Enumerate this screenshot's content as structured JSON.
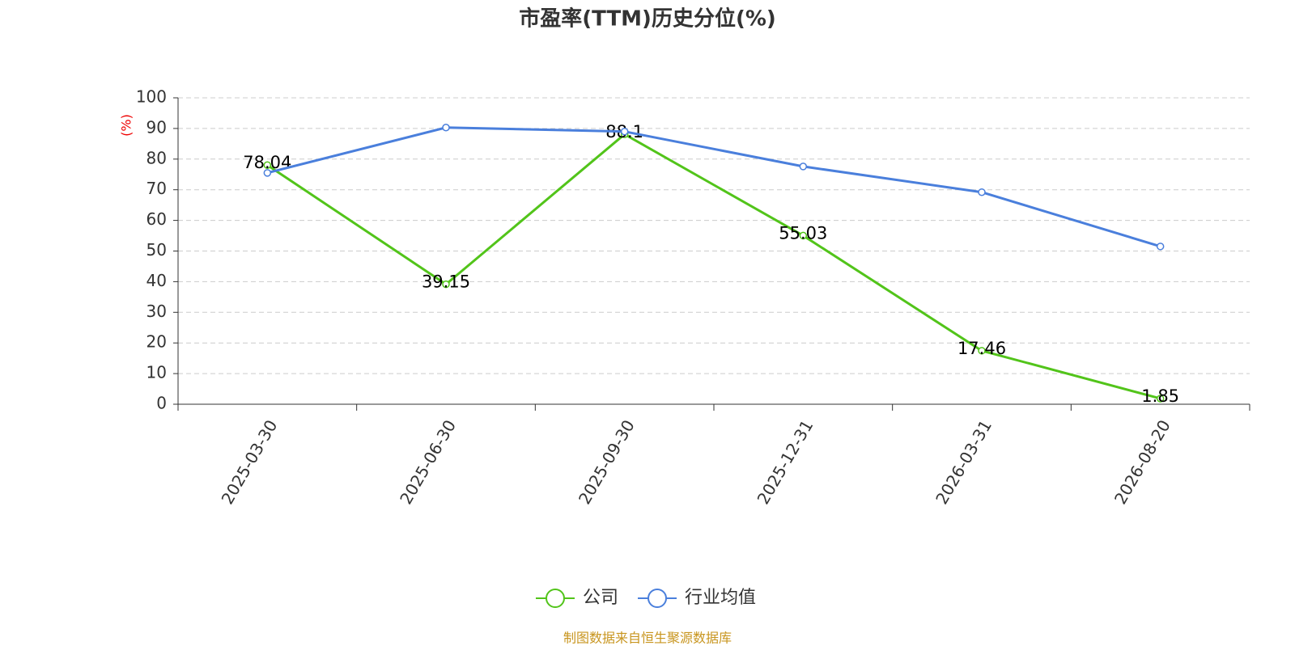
{
  "chart_data": {
    "type": "line",
    "title": "市盈率(TTM)历史分位(%)",
    "y_label": "(%)",
    "categories": [
      "2025-03-30",
      "2025-06-30",
      "2025-09-30",
      "2025-12-31",
      "2026-03-31",
      "2026-08-20"
    ],
    "series": [
      {
        "name": "公司",
        "color": "#52c41a",
        "values": [
          78.04,
          39.15,
          88.1,
          55.03,
          17.46,
          1.85
        ],
        "show_labels": true
      },
      {
        "name": "行业均值",
        "color": "#4a7fdc",
        "values": [
          75.5,
          90.3,
          89,
          77.6,
          69.2,
          51.5
        ],
        "show_labels": false
      }
    ],
    "ylim": [
      0,
      100
    ],
    "yticks": [
      0,
      10,
      20,
      30,
      40,
      50,
      60,
      70,
      80,
      90,
      100
    ],
    "grid": true,
    "source": "制图数据来自恒生聚源数据库"
  }
}
